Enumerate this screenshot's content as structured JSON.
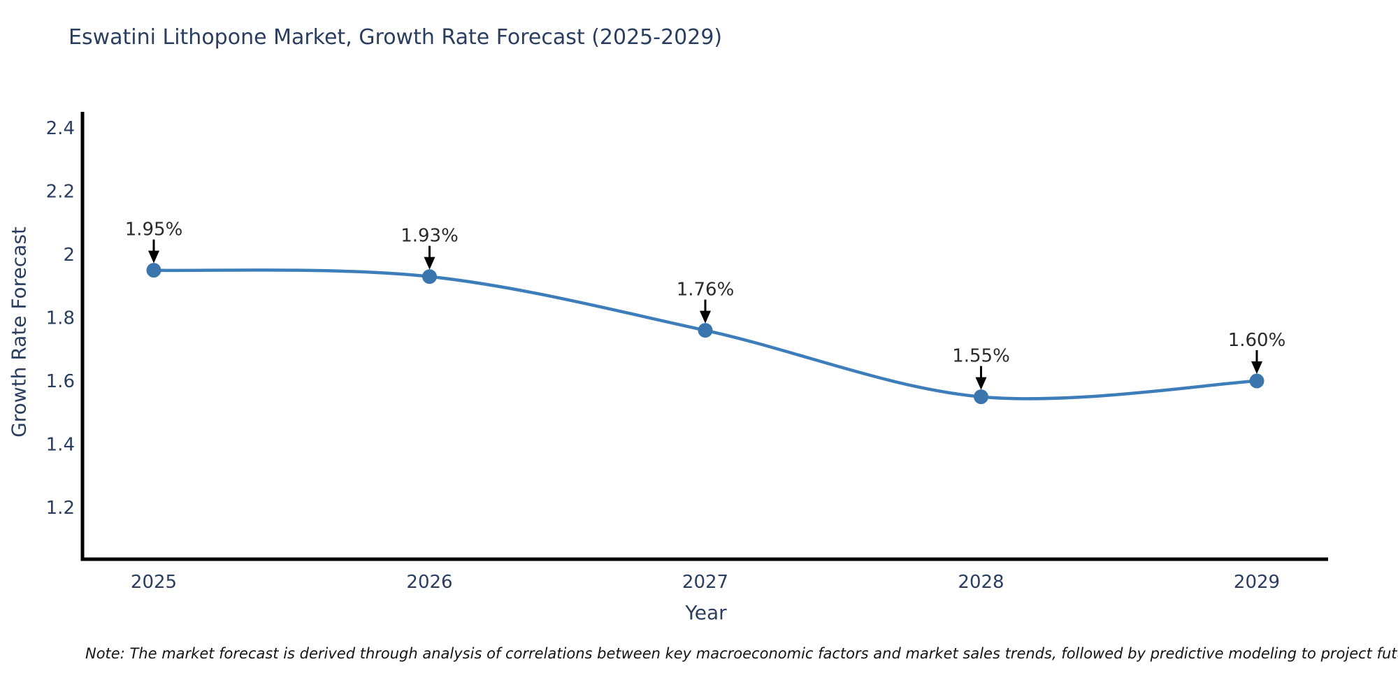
{
  "note": "Note: The market forecast is derived through analysis of correlations between key macroeconomic factors and market sales trends, followed by predictive modeling to project future sales",
  "chart_data": {
    "type": "line",
    "title": "Eswatini Lithopone Market, Growth Rate Forecast (2025-2029)",
    "xlabel": "Year",
    "ylabel": "Growth Rate Forecast",
    "x": [
      2025,
      2026,
      2027,
      2028,
      2029
    ],
    "x_tick_labels": [
      "2025",
      "2026",
      "2027",
      "2028",
      "2029"
    ],
    "values": [
      1.95,
      1.93,
      1.76,
      1.55,
      1.6
    ],
    "point_labels": [
      "1.95%",
      "1.93%",
      "1.76%",
      "1.55%",
      "1.60%"
    ],
    "y_ticks": [
      2.4,
      2.2,
      2,
      1.8,
      1.6,
      1.4,
      1.2
    ],
    "y_tick_labels": [
      "2.4",
      "2.2",
      "2",
      "1.8",
      "1.6",
      "1.4",
      "1.2"
    ],
    "ylim": [
      1.04,
      2.45
    ],
    "grid": false,
    "legend": "none",
    "line_shape": "spline",
    "colors": {
      "line": "#3d7db9",
      "marker": "#3a76ad",
      "axis": "#000000",
      "tick_text": "#2a3f5f",
      "annotation_text": "#2a2a2a",
      "arrow": "#000000"
    }
  }
}
